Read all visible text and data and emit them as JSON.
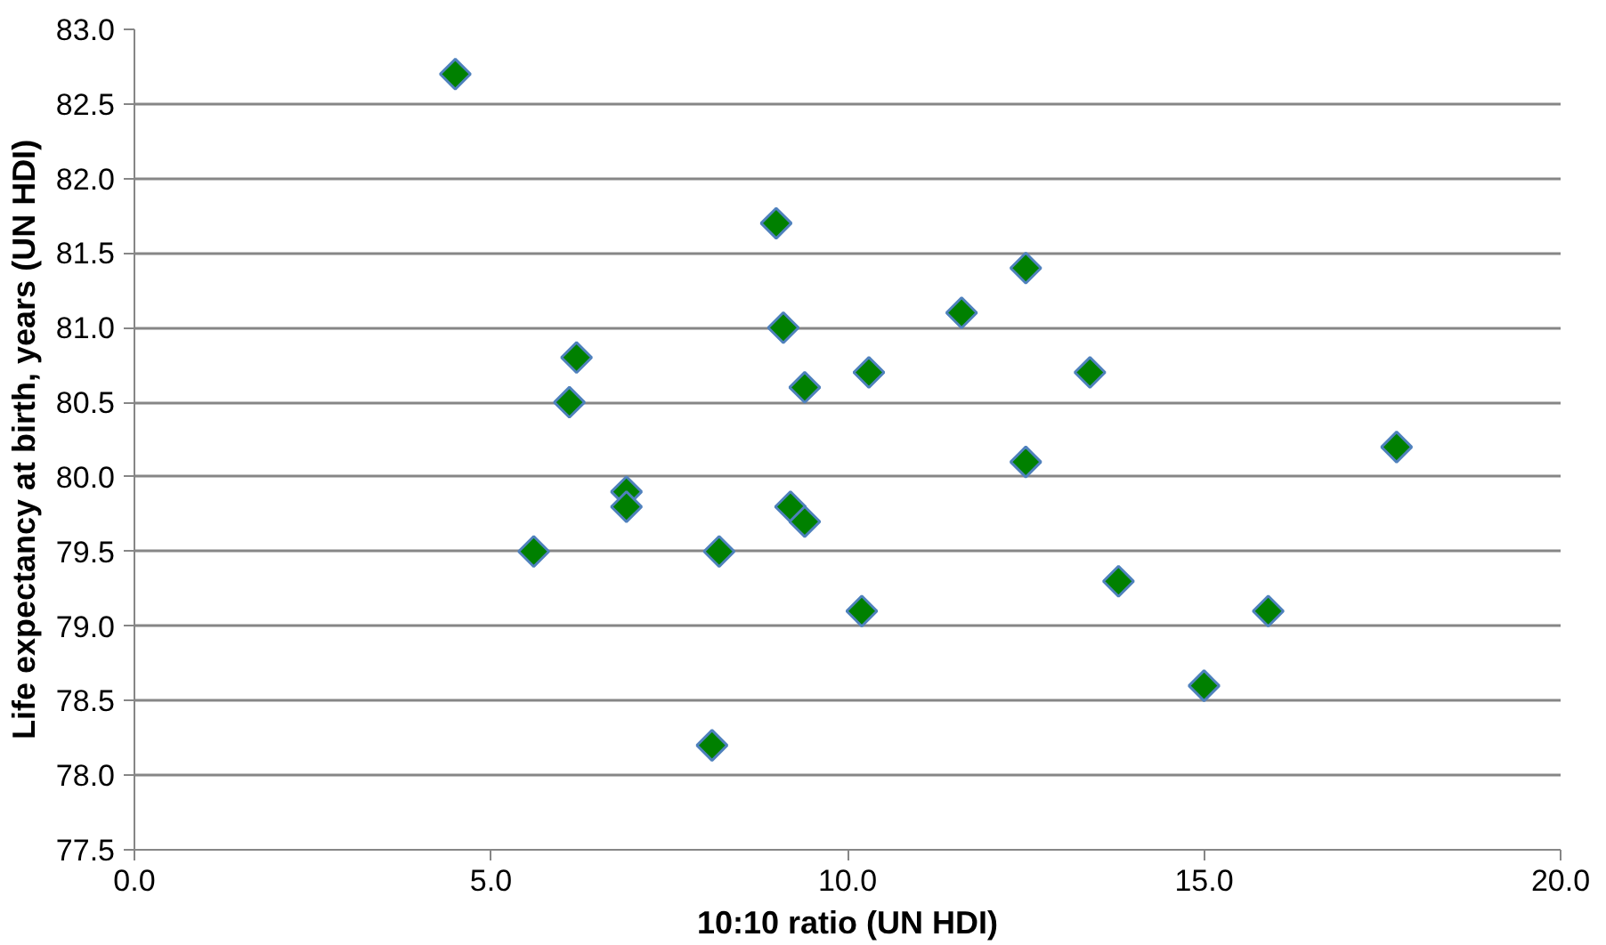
{
  "chart_data": {
    "type": "scatter",
    "xlabel": "10:10 ratio (UN HDI)",
    "ylabel": "Life expectancy at birth, years (UN HDI)",
    "x": [
      4.5,
      5.6,
      6.1,
      6.2,
      6.9,
      6.9,
      8.1,
      8.2,
      9.0,
      9.1,
      9.4,
      9.2,
      9.4,
      10.2,
      10.3,
      11.6,
      12.5,
      12.5,
      13.4,
      13.8,
      15.0,
      15.9,
      17.7
    ],
    "values": [
      82.7,
      79.5,
      80.5,
      80.8,
      79.9,
      79.8,
      78.2,
      79.5,
      81.7,
      81.0,
      80.6,
      79.8,
      79.7,
      79.1,
      80.7,
      81.1,
      81.4,
      80.1,
      80.7,
      79.3,
      78.6,
      79.1,
      80.2
    ],
    "color": "#008000",
    "marker": "diamond",
    "grid": "y",
    "xlim": [
      0,
      20
    ],
    "xticks": [
      {
        "value": 0,
        "label": "0.0"
      },
      {
        "value": 5,
        "label": "5.0"
      },
      {
        "value": 10,
        "label": "10.0"
      },
      {
        "value": 15,
        "label": "15.0"
      },
      {
        "value": 20,
        "label": "20.0"
      }
    ],
    "ylim": [
      77.5,
      83
    ],
    "yticks": [
      77.5,
      {
        "value": 78,
        "label": "78.0"
      },
      78.5,
      {
        "value": 79,
        "label": "79.0"
      },
      79.5,
      {
        "value": 80,
        "label": "80.0"
      },
      80.5,
      {
        "value": 81,
        "label": "81.0"
      },
      81.5,
      {
        "value": 82,
        "label": "82.0"
      },
      82.5,
      {
        "value": 83,
        "label": "83.0"
      }
    ]
  }
}
